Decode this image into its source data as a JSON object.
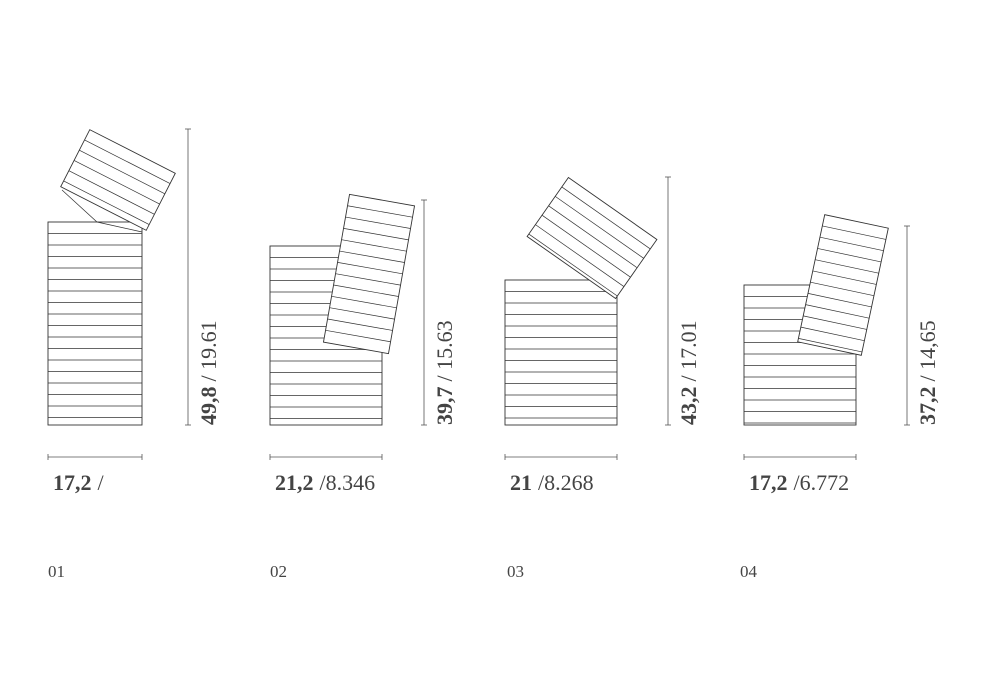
{
  "items": [
    {
      "label": "01",
      "width": {
        "bold": "17,2",
        "rest": "/"
      },
      "height": {
        "bold": "49,8",
        "rest": "/ 19.61"
      }
    },
    {
      "label": "02",
      "width": {
        "bold": "21,2",
        "rest": "/8.346"
      },
      "height": {
        "bold": "39,7",
        "rest": "/ 15.63"
      }
    },
    {
      "label": "03",
      "width": {
        "bold": "21",
        "rest": "/8.268"
      },
      "height": {
        "bold": "43,2",
        "rest": "/ 17.01"
      }
    },
    {
      "label": "04",
      "width": {
        "bold": "17,2",
        "rest": "/6.772"
      },
      "height": {
        "bold": "37,2",
        "rest": "/ 14,65"
      }
    }
  ]
}
